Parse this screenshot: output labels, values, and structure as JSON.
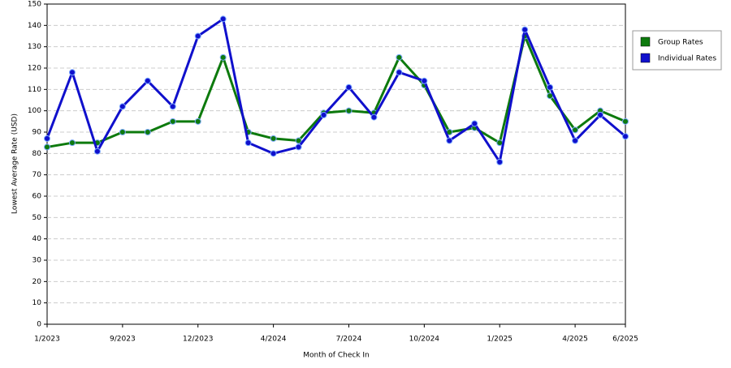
{
  "chart_data": {
    "type": "line",
    "x_label": "Month of Check In",
    "y_label": "Lowest Average Rate (USD)",
    "categories": [
      "1/2023",
      null,
      null,
      "9/2023",
      null,
      null,
      "12/2023",
      null,
      null,
      "4/2024",
      null,
      null,
      "7/2024",
      null,
      null,
      "10/2024",
      null,
      null,
      "1/2025",
      null,
      null,
      "4/2025",
      null,
      "6/2025"
    ],
    "series": [
      {
        "name": "Group Rates",
        "color": "#0d7a0d",
        "values": [
          83,
          85,
          85,
          90,
          90,
          95,
          95,
          125,
          90,
          87,
          86,
          99,
          100,
          99,
          125,
          112,
          90,
          92,
          85,
          135,
          107,
          91,
          100,
          95
        ]
      },
      {
        "name": "Individual Rates",
        "color": "#1010cc",
        "values": [
          87,
          118,
          81,
          102,
          114,
          102,
          135,
          143,
          85,
          80,
          83,
          98,
          111,
          97,
          118,
          114,
          86,
          94,
          76,
          138,
          111,
          86,
          98,
          88
        ]
      }
    ],
    "ylim": [
      0,
      150
    ],
    "yticks": [
      0,
      10,
      20,
      30,
      40,
      50,
      60,
      70,
      80,
      90,
      100,
      110,
      120,
      130,
      140,
      150
    ],
    "grid": true,
    "legend": "right"
  }
}
